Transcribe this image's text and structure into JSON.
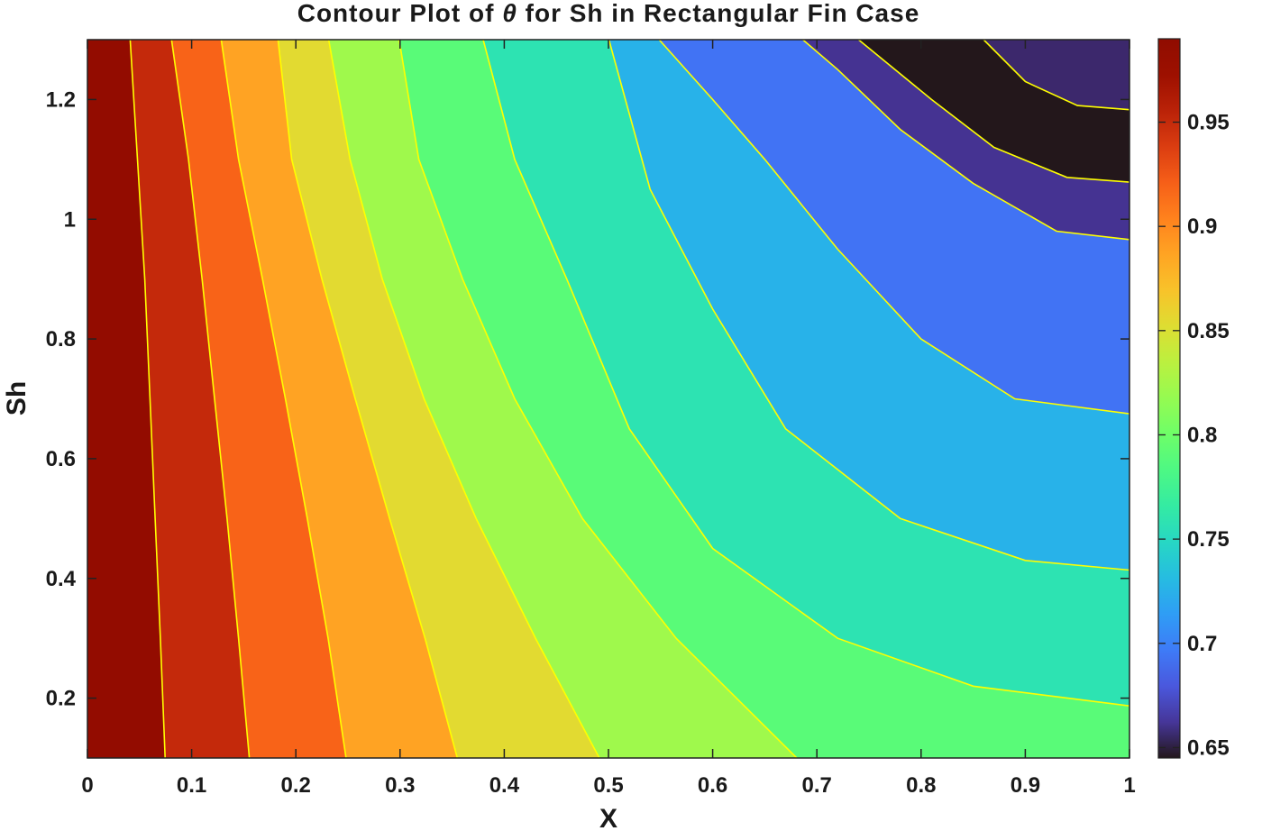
{
  "chart_data": {
    "type": "contour",
    "title": "Contour Plot of θ for Sh in Rectangular Fin Case",
    "title_parts": {
      "before": "Contour Plot of ",
      "symbol": "θ",
      "after": " for Sh in Rectangular Fin Case"
    },
    "xlabel": "X",
    "ylabel": "Sh",
    "xlim": [
      0,
      1
    ],
    "ylim": [
      0.1,
      1.3
    ],
    "x_ticks": [
      "0",
      "0.1",
      "0.2",
      "0.3",
      "0.4",
      "0.5",
      "0.6",
      "0.7",
      "0.8",
      "0.9",
      "1"
    ],
    "y_ticks": [
      "0.2",
      "0.4",
      "0.6",
      "0.8",
      "1",
      "1.2"
    ],
    "colorbar": {
      "range": [
        0.645,
        0.99
      ],
      "ticks": [
        "0.65",
        "0.7",
        "0.75",
        "0.8",
        "0.85",
        "0.9",
        "0.95"
      ],
      "colormap": "turbo"
    },
    "contour_line_color": "#ffff00",
    "levels": [
      0.966,
      0.935,
      0.903,
      0.871,
      0.838,
      0.806,
      0.774,
      0.742,
      0.709,
      0.677,
      0.645
    ],
    "contour_lines": [
      {
        "level": 0.966,
        "points": [
          [
            0.0746,
            0.1
          ],
          [
            0.07,
            0.3
          ],
          [
            0.065,
            0.5
          ],
          [
            0.06,
            0.7
          ],
          [
            0.055,
            0.9
          ],
          [
            0.048,
            1.1
          ],
          [
            0.041,
            1.3
          ]
        ]
      },
      {
        "level": 0.935,
        "points": [
          [
            0.1554,
            0.1
          ],
          [
            0.145,
            0.3
          ],
          [
            0.134,
            0.5
          ],
          [
            0.122,
            0.7
          ],
          [
            0.11,
            0.9
          ],
          [
            0.097,
            1.1
          ],
          [
            0.0807,
            1.3
          ]
        ]
      },
      {
        "level": 0.903,
        "points": [
          [
            0.2482,
            0.1
          ],
          [
            0.231,
            0.3
          ],
          [
            0.211,
            0.5
          ],
          [
            0.19,
            0.7
          ],
          [
            0.168,
            0.9
          ],
          [
            0.145,
            1.1
          ],
          [
            0.1284,
            1.3
          ]
        ]
      },
      {
        "level": 0.871,
        "points": [
          [
            0.3549,
            0.1
          ],
          [
            0.324,
            0.3
          ],
          [
            0.29,
            0.5
          ],
          [
            0.257,
            0.7
          ],
          [
            0.225,
            0.9
          ],
          [
            0.196,
            1.1
          ],
          [
            0.1829,
            1.3
          ]
        ]
      },
      {
        "level": 0.838,
        "points": [
          [
            0.4913,
            0.1
          ],
          [
            0.43,
            0.3
          ],
          [
            0.373,
            0.5
          ],
          [
            0.323,
            0.7
          ],
          [
            0.283,
            0.9
          ],
          [
            0.252,
            1.1
          ],
          [
            0.2315,
            1.3
          ]
        ]
      },
      {
        "level": 0.806,
        "points": [
          [
            0.6807,
            0.1
          ],
          [
            0.565,
            0.3
          ],
          [
            0.475,
            0.5
          ],
          [
            0.41,
            0.7
          ],
          [
            0.36,
            0.9
          ],
          [
            0.318,
            1.1
          ],
          [
            0.2991,
            1.3
          ]
        ]
      },
      {
        "level": 0.774,
        "points": [
          [
            1.0,
            0.187
          ],
          [
            0.85,
            0.22
          ],
          [
            0.72,
            0.3
          ],
          [
            0.6,
            0.45
          ],
          [
            0.52,
            0.65
          ],
          [
            0.46,
            0.9
          ],
          [
            0.41,
            1.1
          ],
          [
            0.3798,
            1.3
          ]
        ]
      },
      {
        "level": 0.742,
        "points": [
          [
            1.0,
            0.414
          ],
          [
            0.9,
            0.43
          ],
          [
            0.78,
            0.5
          ],
          [
            0.67,
            0.65
          ],
          [
            0.6,
            0.85
          ],
          [
            0.54,
            1.05
          ],
          [
            0.5004,
            1.3
          ]
        ]
      },
      {
        "level": 0.709,
        "points": [
          [
            1.0,
            0.675
          ],
          [
            0.89,
            0.7
          ],
          [
            0.8,
            0.8
          ],
          [
            0.72,
            0.95
          ],
          [
            0.65,
            1.1
          ],
          [
            0.6,
            1.2
          ],
          [
            0.5486,
            1.3
          ]
        ]
      },
      {
        "level": 0.677,
        "points": [
          [
            1.0,
            0.966
          ],
          [
            0.93,
            0.98
          ],
          [
            0.85,
            1.06
          ],
          [
            0.78,
            1.15
          ],
          [
            0.72,
            1.25
          ],
          [
            0.6865,
            1.3
          ]
        ]
      },
      {
        "level": 0.645,
        "points": [
          [
            1.0,
            1.062
          ],
          [
            0.94,
            1.07
          ],
          [
            0.87,
            1.12
          ],
          [
            0.81,
            1.2
          ],
          [
            0.74,
            1.3
          ]
        ]
      }
    ],
    "extra_region": {
      "level": 0.645,
      "points": [
        [
          1.0,
          1.183
        ],
        [
          0.95,
          1.19
        ],
        [
          0.9,
          1.23
        ],
        [
          0.86,
          1.3
        ]
      ]
    }
  }
}
